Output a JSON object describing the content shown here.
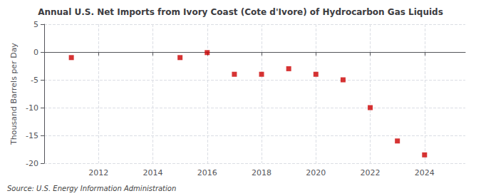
{
  "chart_data": {
    "type": "scatter",
    "title": "Annual U.S. Net Imports from Ivory Coast (Cote d'Ivore) of Hydrocarbon Gas Liquids",
    "ylabel": "Thousand Barrels per Day",
    "annotation": "Source: U.S. Energy Information Administration",
    "x": [
      2011,
      2015,
      2016,
      2017,
      2018,
      2019,
      2020,
      2021,
      2022,
      2023,
      2024
    ],
    "values": [
      -1.0,
      -1.0,
      -0.1,
      -4.0,
      -4.0,
      -3.0,
      -4.0,
      -5.0,
      -10.0,
      -16.0,
      -18.5
    ],
    "color": "#CC0000",
    "marker": "square",
    "xlim": [
      2010.0,
      2025.5
    ],
    "xticks": [
      2012,
      2014,
      2016,
      2018,
      2020,
      2022,
      2024
    ],
    "ylim": [
      -20,
      5
    ],
    "yticks": [
      -20,
      -15,
      -10,
      -5,
      0,
      5
    ],
    "grid": true
  }
}
